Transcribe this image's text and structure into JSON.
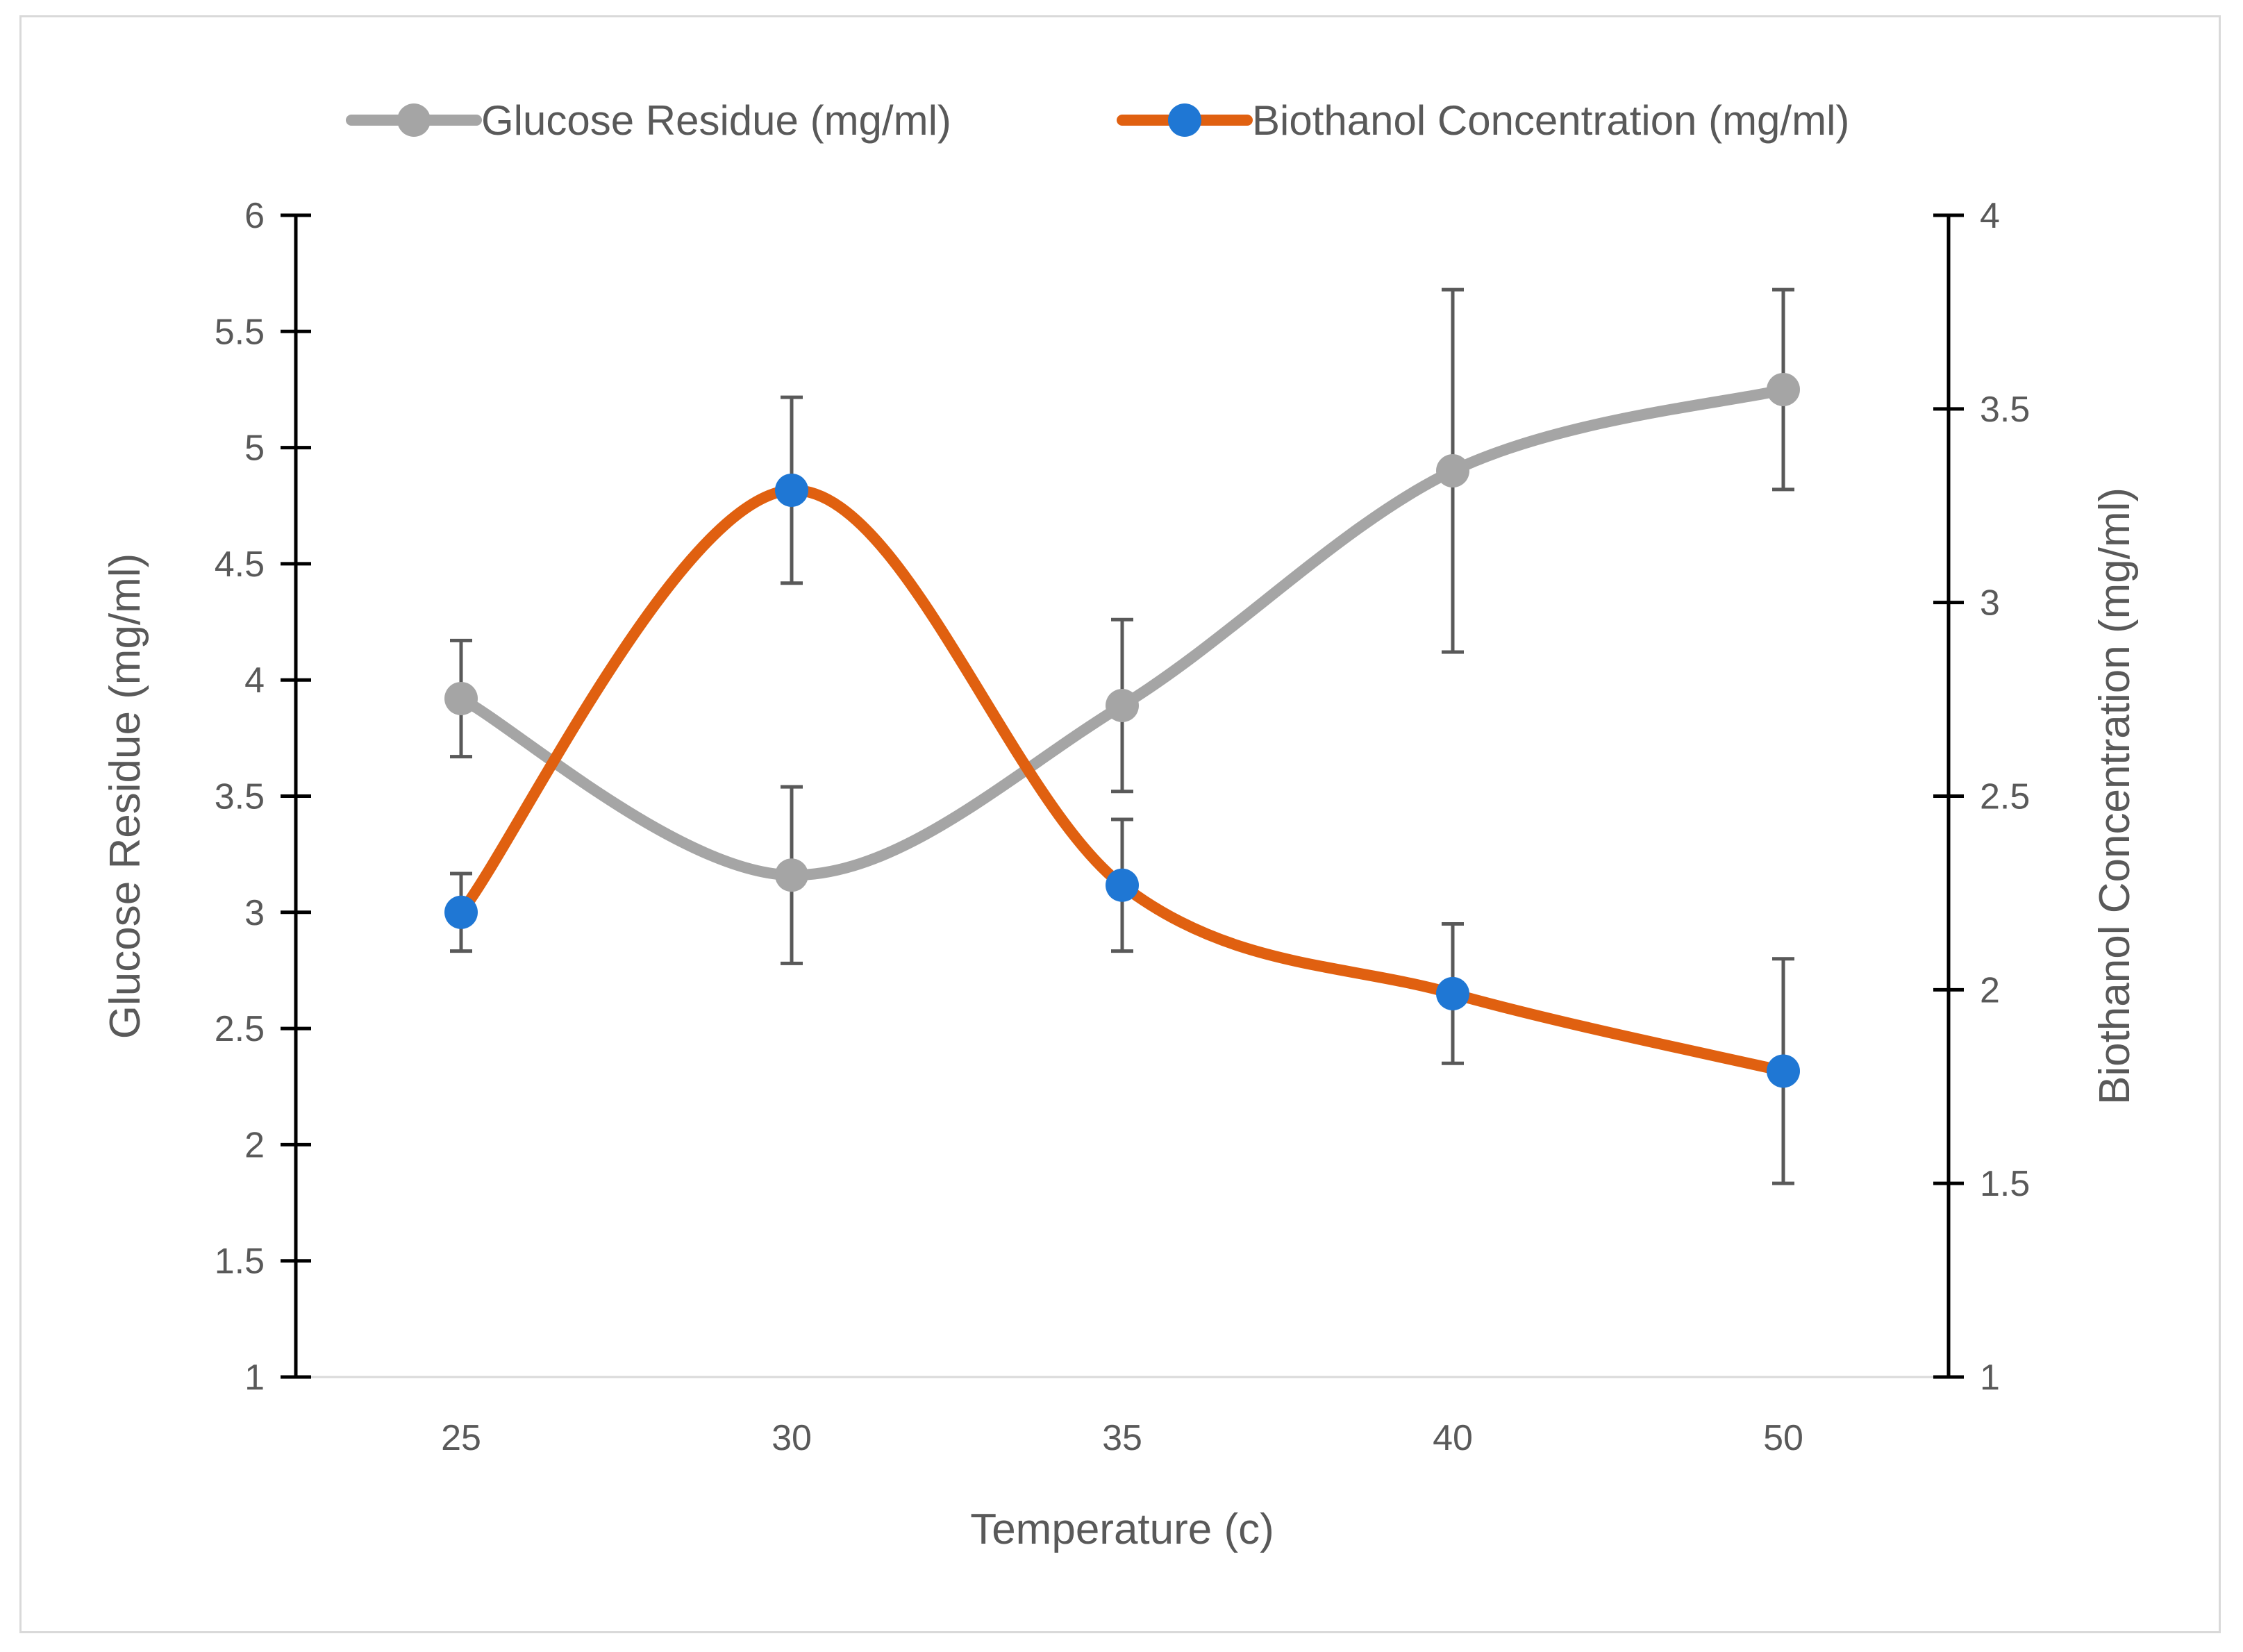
{
  "chart_data": {
    "type": "line",
    "title": "",
    "categories": [
      "25",
      "30",
      "35",
      "40",
      "50"
    ],
    "xlabel": "Temperature (c)",
    "ylabel_left": "Glucose Residue (mg/ml)",
    "ylabel_right": "Biothanol Concentration (mg/ml)",
    "ylim_left": [
      1,
      6
    ],
    "yticks_left": [
      1,
      1.5,
      2,
      2.5,
      3,
      3.5,
      4,
      4.5,
      5,
      5.5,
      6
    ],
    "ylim_right": [
      1,
      4
    ],
    "yticks_right": [
      1,
      1.5,
      2,
      2.5,
      3,
      3.5,
      4
    ],
    "legend_position": "top",
    "grid": false,
    "smooth": true,
    "series": [
      {
        "name": "Glucose Residue (mg/ml)",
        "axis": "left",
        "color": "#a5a5a5",
        "marker_color": "#a5a5a5",
        "values": [
          3.92,
          3.16,
          3.89,
          4.9,
          5.25
        ],
        "err_low": [
          3.67,
          2.78,
          3.52,
          4.12,
          4.82
        ],
        "err_high": [
          4.17,
          3.54,
          4.26,
          5.68,
          5.68
        ]
      },
      {
        "name": "Biothanol Concentration (mg/ml)",
        "axis": "right",
        "color": "#e06010",
        "marker_color": "#1f77d4",
        "values": [
          2.2,
          3.29,
          2.27,
          1.99,
          1.79
        ],
        "err_low": [
          2.1,
          3.05,
          2.1,
          1.81,
          1.5
        ],
        "err_high": [
          2.3,
          3.53,
          2.44,
          2.17,
          2.08
        ]
      }
    ],
    "colors": {
      "axis": "#000000",
      "error_bar": "#595959",
      "text": "#595959"
    }
  }
}
